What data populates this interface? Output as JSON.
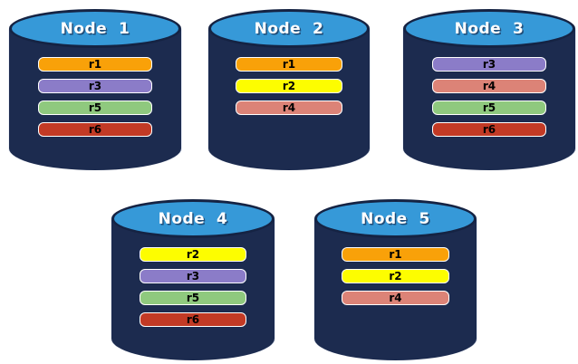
{
  "colors": {
    "background": "#FFFFFF",
    "cylinder_body": "#1C2B4F",
    "cylinder_top": "#3699D8",
    "cylinder_outline": "#152343",
    "title_text": "#FFFFFF",
    "bar_text": "#000000",
    "bar_border": "#FFFFFF"
  },
  "replica_colors": {
    "r1": "#F9A109",
    "r2": "#FDFD00",
    "r3": "#8B7CC8",
    "r4": "#DC8377",
    "r5": "#8FC97E",
    "r6": "#C23A25"
  },
  "nodes": [
    {
      "title": "Node  1",
      "replicas": [
        "r1",
        "r3",
        "r5",
        "r6"
      ]
    },
    {
      "title": "Node  2",
      "replicas": [
        "r1",
        "r2",
        "r4"
      ]
    },
    {
      "title": "Node  3",
      "replicas": [
        "r3",
        "r4",
        "r5",
        "r6"
      ]
    },
    {
      "title": "Node  4",
      "replicas": [
        "r2",
        "r3",
        "r5",
        "r6"
      ]
    },
    {
      "title": "Node  5",
      "replicas": [
        "r1",
        "r2",
        "r4"
      ]
    }
  ]
}
